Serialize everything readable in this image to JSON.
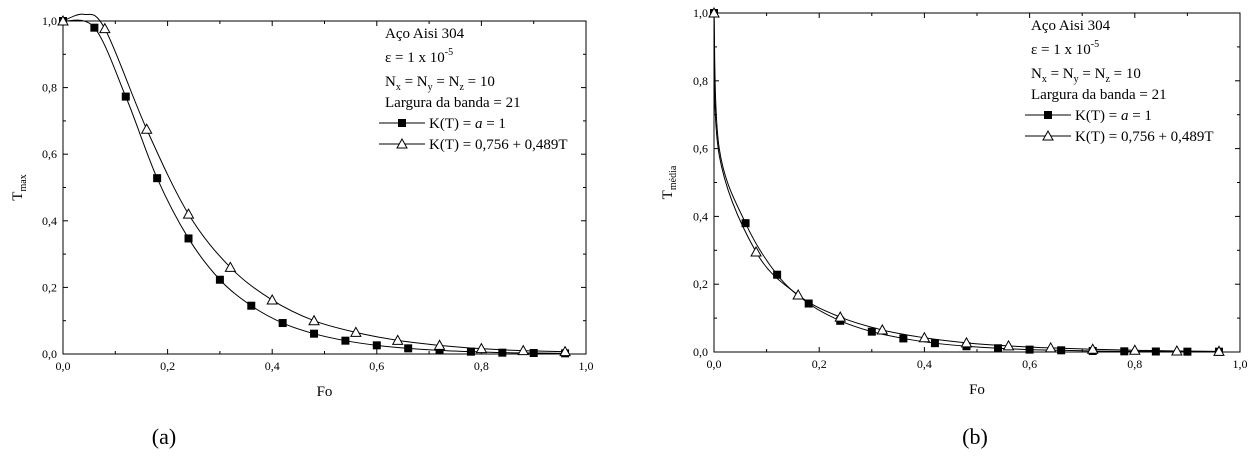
{
  "chart_data": [
    {
      "type": "line",
      "caption": "(a)",
      "xlabel": "Fo",
      "ylabel": {
        "main": "T",
        "sub": "max"
      },
      "xlim": [
        0,
        1
      ],
      "ylim": [
        0,
        1
      ],
      "xticks": [
        "0,0",
        "0,2",
        "0,4",
        "0,6",
        "0,8",
        "1,0"
      ],
      "xtick_values": [
        0,
        0.2,
        0.4,
        0.6,
        0.8,
        1.0
      ],
      "yticks": [
        "0,0",
        "0,2",
        "0,4",
        "0,6",
        "0,8",
        "1,0"
      ],
      "ytick_values": [
        0,
        0.2,
        0.4,
        0.6,
        0.8,
        1.0
      ],
      "annotation": {
        "material": "Aço Aisi 304",
        "epsilon": {
          "main": "ε = 1 x 10",
          "sup": "-5"
        },
        "grid": {
          "n": "N",
          "x": "x",
          "eq1": " = N",
          "y": "y",
          "eq2": " = N",
          "z": "z",
          "rest": " = 10"
        },
        "band": "Largura da banda = 21"
      },
      "legend_position": "top-right",
      "series": [
        {
          "name_prefix": "K(T) = ",
          "name_italic": "a",
          "name_suffix": " = 1",
          "marker": "square-filled",
          "x": [
            0.0,
            0.06,
            0.12,
            0.18,
            0.24,
            0.3,
            0.36,
            0.42,
            0.48,
            0.54,
            0.6,
            0.66,
            0.72,
            0.78,
            0.84,
            0.9,
            0.96
          ],
          "y": [
            1.0,
            0.98,
            0.773,
            0.528,
            0.347,
            0.223,
            0.145,
            0.093,
            0.061,
            0.04,
            0.026,
            0.017,
            0.011,
            0.007,
            0.004,
            0.003,
            0.002
          ]
        },
        {
          "name_prefix": "K(T) = 0,756 + 0,489T",
          "name_italic": "",
          "name_suffix": "",
          "marker": "triangle-open",
          "x": [
            0.0,
            0.04,
            0.08,
            0.16,
            0.24,
            0.32,
            0.4,
            0.48,
            0.56,
            0.64,
            0.72,
            0.8,
            0.88,
            0.96
          ],
          "y": [
            1.0,
            1.02,
            0.977,
            0.675,
            0.42,
            0.26,
            0.162,
            0.1,
            0.065,
            0.041,
            0.026,
            0.016,
            0.01,
            0.007
          ]
        }
      ]
    },
    {
      "type": "line",
      "caption": "(b)",
      "xlabel": "Fo",
      "ylabel": {
        "main": "T",
        "sub": "média"
      },
      "xlim": [
        0,
        1
      ],
      "ylim": [
        0,
        1
      ],
      "xticks": [
        "0,0",
        "0,2",
        "0,4",
        "0,6",
        "0,8",
        "1,0"
      ],
      "xtick_values": [
        0,
        0.2,
        0.4,
        0.6,
        0.8,
        1.0
      ],
      "yticks": [
        "0,0",
        "0,2",
        "0,4",
        "0,6",
        "0,8",
        "1,0"
      ],
      "ytick_values": [
        0,
        0.2,
        0.4,
        0.6,
        0.8,
        1.0
      ],
      "annotation": {
        "material": "Aço Aisi 304",
        "epsilon": {
          "main": "ε = 1 x 10",
          "sup": "-5"
        },
        "grid": {
          "n": "N",
          "x": "x",
          "eq1": " = N",
          "y": "y",
          "eq2": " = N",
          "z": "z",
          "rest": " = 10"
        },
        "band": "Largura da banda = 21"
      },
      "legend_position": "top-right",
      "series": [
        {
          "name_prefix": "K(T) = ",
          "name_italic": "a",
          "name_suffix": " = 1",
          "marker": "square-filled",
          "x": [
            0.0,
            0.01,
            0.06,
            0.12,
            0.18,
            0.24,
            0.3,
            0.36,
            0.42,
            0.48,
            0.54,
            0.6,
            0.66,
            0.72,
            0.78,
            0.84,
            0.9,
            0.96
          ],
          "y": [
            1.0,
            0.6,
            0.38,
            0.228,
            0.143,
            0.092,
            0.06,
            0.04,
            0.026,
            0.017,
            0.011,
            0.007,
            0.005,
            0.003,
            0.002,
            0.0015,
            0.001,
            0.001
          ]
        },
        {
          "name_prefix": "K(T) = 0,756 + 0,489T",
          "name_italic": "",
          "name_suffix": "",
          "marker": "triangle-open",
          "x": [
            0.0,
            0.01,
            0.08,
            0.16,
            0.24,
            0.32,
            0.4,
            0.48,
            0.56,
            0.64,
            0.72,
            0.8,
            0.88,
            0.96
          ],
          "y": [
            1.0,
            0.58,
            0.295,
            0.168,
            0.103,
            0.065,
            0.042,
            0.027,
            0.018,
            0.012,
            0.008,
            0.005,
            0.003,
            0.002
          ]
        }
      ]
    }
  ]
}
